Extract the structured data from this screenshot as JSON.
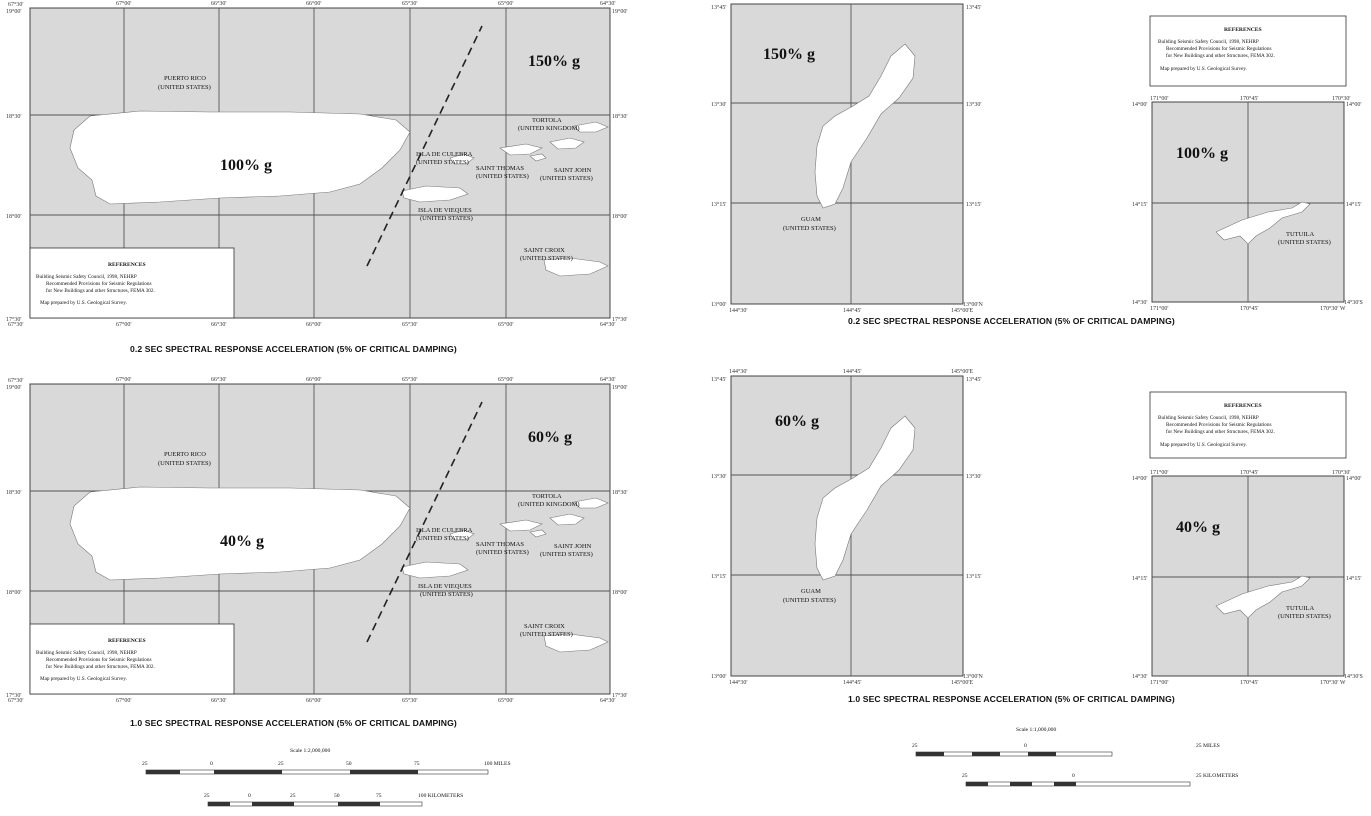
{
  "pr_panels": [
    {
      "value": "150% g",
      "main_value": "100% g",
      "caption": "0.2 SEC SPECTRAL RESPONSE ACCELERATION (5% OF CRITICAL DAMPING)"
    },
    {
      "value": "60% g",
      "main_value": "40% g",
      "caption": "1.0 SEC SPECTRAL RESPONSE ACCELERATION (5% OF CRITICAL DAMPING)"
    }
  ],
  "pr_labels": {
    "puerto_rico": "PUERTO RICO",
    "united_states": "(UNITED STATES)",
    "tortola": "TORTOLA",
    "united_kingdom": "(UNITED KINGDOM)",
    "culebra": "ISLA DE CULEBRA",
    "saint_thomas": "SAINT THOMAS",
    "saint_john": "SAINT JOHN",
    "vieques": "ISLA DE VIEQUES",
    "saint_croix": "SAINT CROIX"
  },
  "pr_ticks": {
    "top": [
      "67°30'",
      "67°00'",
      "66°30'",
      "66°00'",
      "65°30'",
      "65°00'",
      "64°30'"
    ],
    "left": [
      "19°00'",
      "18°30'",
      "18°00'",
      "17°30'"
    ]
  },
  "references": {
    "heading": "REFERENCES",
    "line1": "Building Seismic Safety Council, 1998, NEHRP",
    "line2": "Recommended Provisions for Seismic Regulations",
    "line3": "for New Buildings and other Structures, FEMA 302.",
    "line4": "Map prepared by U.S. Geological Survey."
  },
  "pacific_panels": [
    {
      "guam_value": "150% g",
      "tutuila_value": "100% g",
      "caption": "0.2 SEC SPECTRAL RESPONSE ACCELERATION (5% OF CRITICAL DAMPING)"
    },
    {
      "guam_value": "60% g",
      "tutuila_value": "40% g",
      "caption": "1.0 SEC SPECTRAL RESPONSE ACCELERATION (5% OF CRITICAL DAMPING)"
    }
  ],
  "pacific_labels": {
    "guam": "GUAM",
    "united_states": "(UNITED STATES)",
    "tutuila": "TUTUILA"
  },
  "guam_ticks": {
    "top": [
      "144°30'",
      "144°45'",
      "145°00'E"
    ],
    "left": [
      "13°45'",
      "13°30'",
      "13°15'",
      "13°00'"
    ],
    "right_bottom": "13°00'N"
  },
  "tutuila_ticks": {
    "top": [
      "171°00'",
      "170°45'",
      "170°30'"
    ],
    "left": [
      "14°00'",
      "14°15'",
      "14°30'"
    ],
    "right_bottom": "14°30'S",
    "bottom_right": "170°30' W"
  },
  "pr_scale": {
    "title": "Scale 1:2,000,000",
    "miles": [
      "25",
      "0",
      "25",
      "50",
      "75",
      "100 MILES"
    ],
    "km": [
      "25",
      "0",
      "25",
      "50",
      "75",
      "100 KILOMETERS"
    ]
  },
  "pac_scale": {
    "title": "Scale 1:1,000,000",
    "miles": [
      "25",
      "0",
      "25 MILES"
    ],
    "km": [
      "25",
      "0",
      "25 KILOMETERS"
    ]
  }
}
